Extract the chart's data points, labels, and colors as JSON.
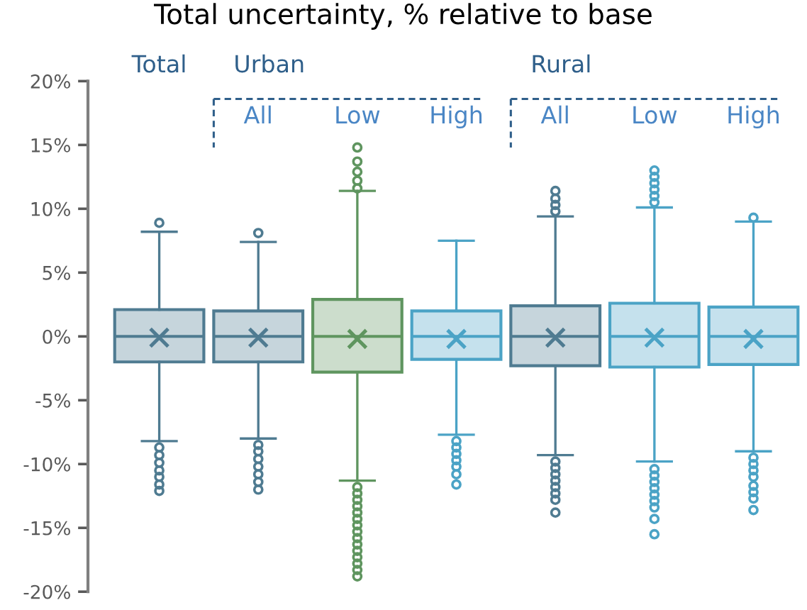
{
  "chart_data": {
    "type": "box",
    "title": "Total uncertainty, % relative to base",
    "categories": [
      "Total",
      "All",
      "Low",
      "High",
      "All",
      "Low",
      "High"
    ],
    "colors": [
      "#4f7b91",
      "#4f7b91",
      "#5f955f",
      "#4ba3c6",
      "#4f7b91",
      "#4ba3c6",
      "#4ba3c6"
    ],
    "boxes": [
      {
        "low": -8.2,
        "q1": -2.0,
        "median": 0,
        "q3": 2.1,
        "high": 8.2,
        "mean": -0.1,
        "outliers": [
          8.9,
          -8.7,
          -9.3,
          -9.9,
          -10.5,
          -11.0,
          -11.6,
          -12.1
        ]
      },
      {
        "low": -8.0,
        "q1": -2.0,
        "median": 0,
        "q3": 2.0,
        "high": 7.4,
        "mean": -0.1,
        "outliers": [
          8.1,
          -8.5,
          -9.0,
          -9.6,
          -10.2,
          -10.8,
          -11.4,
          -12.0
        ]
      },
      {
        "low": -11.3,
        "q1": -2.8,
        "median": 0,
        "q3": 2.9,
        "high": 11.4,
        "mean": -0.2,
        "outliers": [
          11.6,
          12.2,
          12.9,
          13.7,
          14.8,
          -11.8,
          -12.3,
          -12.8,
          -13.3,
          -13.8,
          -14.3,
          -14.8,
          -15.3,
          -15.8,
          -16.3,
          -16.8,
          -17.3,
          -17.8,
          -18.3,
          -18.8
        ]
      },
      {
        "low": -7.7,
        "q1": -1.8,
        "median": 0,
        "q3": 2.0,
        "high": 7.5,
        "mean": -0.2,
        "outliers": [
          -8.2,
          -8.7,
          -9.2,
          -9.7,
          -10.2,
          -10.8,
          -11.6
        ]
      },
      {
        "low": -9.3,
        "q1": -2.3,
        "median": 0,
        "q3": 2.4,
        "high": 9.4,
        "mean": -0.1,
        "outliers": [
          9.8,
          10.3,
          10.8,
          11.4,
          -9.8,
          -10.3,
          -10.8,
          -11.3,
          -11.8,
          -12.3,
          -12.8,
          -13.8
        ]
      },
      {
        "low": -9.8,
        "q1": -2.4,
        "median": 0,
        "q3": 2.6,
        "high": 10.1,
        "mean": -0.1,
        "outliers": [
          10.5,
          11.0,
          11.5,
          12.0,
          12.5,
          13.0,
          -10.4,
          -10.9,
          -11.4,
          -11.9,
          -12.4,
          -12.9,
          -13.4,
          -14.3,
          -15.5
        ]
      },
      {
        "low": -9.0,
        "q1": -2.2,
        "median": 0,
        "q3": 2.3,
        "high": 9.0,
        "mean": -0.2,
        "outliers": [
          9.3,
          -9.5,
          -10.0,
          -10.5,
          -11.0,
          -11.7,
          -12.2,
          -12.7,
          -13.6
        ]
      }
    ],
    "ylim": [
      -20,
      20
    ],
    "yticks": [
      {
        "value": -20,
        "label": "-20%"
      },
      {
        "value": -15,
        "label": "-15%"
      },
      {
        "value": -10,
        "label": "-10%"
      },
      {
        "value": -5,
        "label": "-5%"
      },
      {
        "value": 0,
        "label": "0%"
      },
      {
        "value": 5,
        "label": "5%"
      },
      {
        "value": 10,
        "label": "10%"
      },
      {
        "value": 15,
        "label": "15%"
      },
      {
        "value": 20,
        "label": "20%"
      }
    ],
    "annotations": [
      "Urban",
      "Rural"
    ]
  }
}
